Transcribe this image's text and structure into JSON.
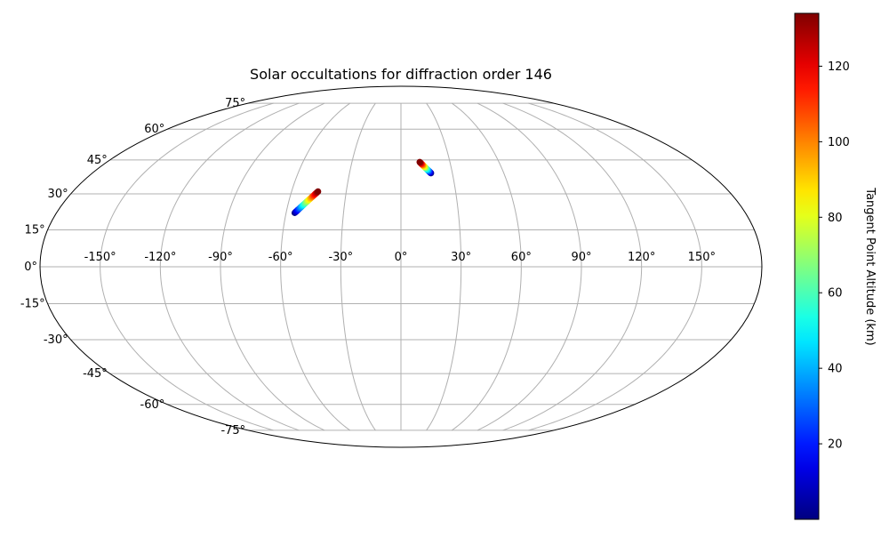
{
  "chart_data": {
    "type": "scatter",
    "projection": "mollweide",
    "title": "Solar occultations for diffraction order 146",
    "xlabel": "",
    "ylabel": "",
    "grid": true,
    "x_ticks": [
      -150,
      -120,
      -90,
      -60,
      -30,
      0,
      30,
      60,
      90,
      120,
      150
    ],
    "x_tick_labels": [
      "-150°",
      "-120°",
      "-90°",
      "-60°",
      "-30°",
      "0°",
      "30°",
      "60°",
      "90°",
      "120°",
      "150°"
    ],
    "y_ticks": [
      -75,
      -60,
      -45,
      -30,
      -15,
      0,
      15,
      30,
      45,
      60,
      75
    ],
    "y_tick_labels": [
      "-75°",
      "-60°",
      "-45°",
      "-30°",
      "-15°",
      "0°",
      "15°",
      "30°",
      "45°",
      "60°",
      "75°"
    ],
    "colormap": "jet",
    "colorbar": {
      "label": "Tangent Point Altitude (km)",
      "range": [
        0,
        134
      ],
      "ticks": [
        20,
        40,
        60,
        80,
        100,
        120
      ],
      "tick_labels": [
        "20",
        "40",
        "60",
        "80",
        "100",
        "120"
      ]
    },
    "series": [
      {
        "lon_start": -55.5,
        "lat_start": 22.0,
        "alt_start": 0,
        "lon_end": -45.5,
        "lat_end": 31.0,
        "alt_end": 134
      },
      {
        "lon_start": 17.5,
        "lat_start": 39.0,
        "alt_start": 0,
        "lon_end": 11.5,
        "lat_end": 44.0,
        "alt_end": 134
      }
    ]
  },
  "colors": {
    "grid": "#b0b0b0",
    "frame": "#000000",
    "background": "#ffffff"
  }
}
